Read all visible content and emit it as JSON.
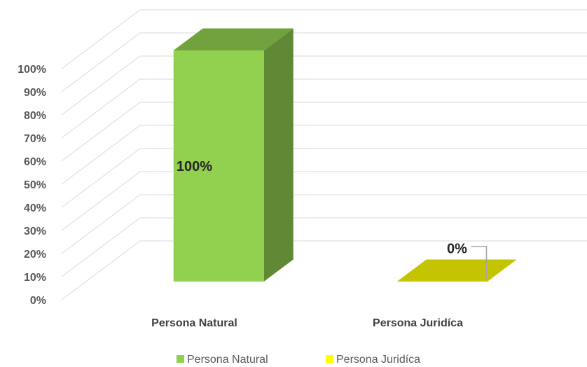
{
  "chart_data": {
    "type": "bar3d",
    "categories": [
      "Persona Natural",
      "Persona Juridíca"
    ],
    "values": [
      100,
      0
    ],
    "value_labels": [
      "100%",
      "0%"
    ],
    "colors": [
      "#92d050",
      "#ffff00"
    ],
    "ylim": [
      0,
      100
    ],
    "yticks": [
      {
        "value": 0,
        "label": "0%"
      },
      {
        "value": 10,
        "label": "10%"
      },
      {
        "value": 20,
        "label": "20%"
      },
      {
        "value": 30,
        "label": "30%"
      },
      {
        "value": 40,
        "label": "40%"
      },
      {
        "value": 50,
        "label": "50%"
      },
      {
        "value": 60,
        "label": "60%"
      },
      {
        "value": 70,
        "label": "70%"
      },
      {
        "value": 80,
        "label": "80%"
      },
      {
        "value": 90,
        "label": "90%"
      },
      {
        "value": 100,
        "label": "100%"
      }
    ],
    "grid": true
  }
}
